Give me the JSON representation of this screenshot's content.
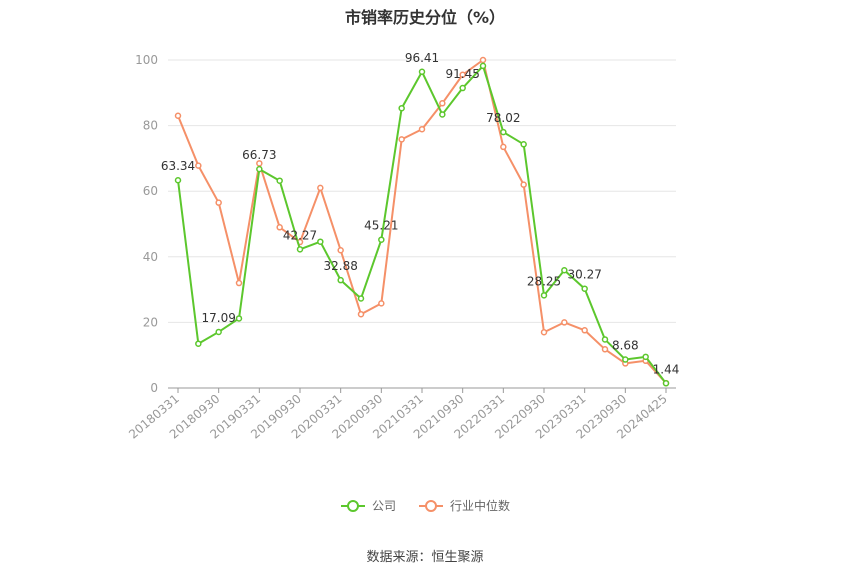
{
  "title": "市销率历史分位（%）",
  "source": "数据来源：恒生聚源",
  "colors": {
    "company": "#5cc72d",
    "industry": "#f59068",
    "grid": "#e6e6e6",
    "axis": "#999999",
    "tick_text": "#999999"
  },
  "chart_data": {
    "type": "line",
    "title": "市销率历史分位（%）",
    "ylim": [
      0,
      100
    ],
    "y_ticks": [
      0,
      20,
      40,
      60,
      80,
      100
    ],
    "grid": true,
    "legend_position": "bottom-center",
    "x_tick_labels": [
      "20180331",
      "20180930",
      "20190331",
      "20190930",
      "20200331",
      "20200930",
      "20210331",
      "20210930",
      "20220331",
      "20220930",
      "20230331",
      "20230930",
      "20240425"
    ],
    "x_tick_indices": [
      0,
      2,
      4,
      6,
      8,
      10,
      12,
      14,
      16,
      18,
      20,
      22,
      24
    ],
    "n_points": 25,
    "series": [
      {
        "name": "公司",
        "color": "#5cc72d",
        "values": [
          63.34,
          13.5,
          17.09,
          21.2,
          66.73,
          63.2,
          42.27,
          44.6,
          32.88,
          27.3,
          45.21,
          85.3,
          96.41,
          83.4,
          91.45,
          98.2,
          78.02,
          74.3,
          28.25,
          35.9,
          30.27,
          14.8,
          8.68,
          9.5,
          1.44
        ],
        "labels": [
          "63.34",
          "",
          "17.09",
          "",
          "66.73",
          "",
          "42.27",
          "",
          "32.88",
          "",
          "45.21",
          "",
          "96.41",
          "",
          "91.45",
          "",
          "78.02",
          "",
          "28.25",
          "",
          "30.27",
          "",
          "8.68",
          "",
          "1.44"
        ]
      },
      {
        "name": "行业中位数",
        "color": "#f59068",
        "values": [
          83.0,
          67.8,
          56.5,
          32.0,
          68.5,
          49.0,
          44.5,
          61.0,
          42.0,
          22.5,
          25.8,
          75.8,
          78.9,
          86.8,
          95.5,
          100.0,
          73.5,
          62.0,
          17.0,
          20.0,
          17.6,
          11.8,
          7.5,
          8.3,
          1.5
        ],
        "labels": []
      }
    ]
  }
}
